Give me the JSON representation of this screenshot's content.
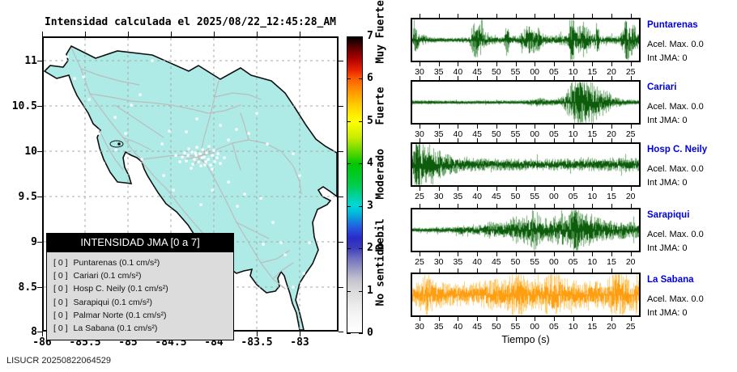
{
  "watermark": "LISUCR 20250822064529",
  "chart_data": {
    "map": {
      "type": "map",
      "title": "Intensidad calculada el 2025/08/22_12:45:28_AM",
      "x_ticks": [
        "-86",
        "-85.5",
        "-85",
        "-84.5",
        "-84",
        "-83.5",
        "-83"
      ],
      "y_ticks": [
        "11",
        "10.5",
        "10",
        "9.5",
        "9",
        "8.5",
        "8"
      ],
      "xlim": [
        -86,
        -82.55
      ],
      "ylim": [
        8,
        11.27
      ],
      "land_color": "#aeeae6",
      "road_color": "#bcbcbc",
      "grid": true,
      "station_dots": [
        [
          185,
          143
        ],
        [
          190,
          147
        ],
        [
          195,
          145
        ],
        [
          200,
          149
        ],
        [
          188,
          152
        ],
        [
          193,
          155
        ],
        [
          198,
          140
        ],
        [
          203,
          144
        ],
        [
          180,
          147
        ],
        [
          205,
          152
        ],
        [
          210,
          147
        ],
        [
          186,
          158
        ],
        [
          196,
          160
        ],
        [
          202,
          155
        ],
        [
          208,
          159
        ],
        [
          178,
          154
        ],
        [
          173,
          149
        ],
        [
          212,
          141
        ],
        [
          216,
          150
        ],
        [
          191,
          137
        ],
        [
          181,
          139
        ],
        [
          176,
          144
        ],
        [
          206,
          136
        ],
        [
          213,
          155
        ],
        [
          197,
          150
        ],
        [
          189,
          144
        ],
        [
          201,
          159
        ],
        [
          184,
          163
        ],
        [
          210,
          164
        ],
        [
          217,
          145
        ],
        [
          170,
          155
        ],
        [
          220,
          157
        ],
        [
          225,
          150
        ],
        [
          165,
          147
        ],
        [
          31,
          25
        ],
        [
          40,
          52
        ],
        [
          51,
          50
        ],
        [
          136,
          30
        ],
        [
          121,
          72
        ],
        [
          58,
          78
        ],
        [
          103,
          120
        ],
        [
          178,
          118
        ],
        [
          191,
          102
        ],
        [
          220,
          110
        ],
        [
          240,
          115
        ],
        [
          278,
          133
        ],
        [
          310,
          145
        ],
        [
          318,
          172
        ],
        [
          346,
          190
        ],
        [
          196,
          208
        ],
        [
          241,
          210
        ],
        [
          273,
          257
        ],
        [
          295,
          255
        ],
        [
          295,
          297
        ],
        [
          323,
          293
        ],
        [
          35,
          147
        ],
        [
          76,
          157
        ],
        [
          91,
          140
        ],
        [
          123,
          152
        ],
        [
          148,
          133
        ],
        [
          157,
          117
        ],
        [
          230,
          128
        ],
        [
          255,
          120
        ],
        [
          265,
          95
        ],
        [
          150,
          172
        ],
        [
          162,
          190
        ],
        [
          210,
          190
        ],
        [
          230,
          180
        ],
        [
          250,
          195
        ],
        [
          270,
          200
        ],
        [
          285,
          230
        ],
        [
          300,
          270
        ],
        [
          310,
          310
        ],
        [
          330,
          255
        ],
        [
          90,
          100
        ],
        [
          70,
          120
        ],
        [
          110,
          85
        ],
        [
          55,
          110
        ]
      ],
      "legend": {
        "title": "INTENSIDAD JMA [0 a 7]",
        "entries": [
          {
            "value": "[ 0 ]",
            "label": "Puntarenas (0.1 cm/s²)"
          },
          {
            "value": "[ 0 ]",
            "label": "Cariari (0.1 cm/s²)"
          },
          {
            "value": "[ 0 ]",
            "label": "Hosp C. Neily (0.1 cm/s²)"
          },
          {
            "value": "[ 0 ]",
            "label": "Sarapiqui (0.1 cm/s²)"
          },
          {
            "value": "[ 0 ]",
            "label": "Palmar Norte (0.1 cm/s²)"
          },
          {
            "value": "[ 0 ]",
            "label": "La Sabana (0.1 cm/s²)"
          }
        ]
      }
    },
    "colorbar": {
      "ticks": [
        "0",
        "1",
        "2",
        "3",
        "4",
        "5",
        "6",
        "7"
      ],
      "range": [
        0,
        7
      ],
      "categories": [
        {
          "text": "No sentido",
          "center_value": 0.78
        },
        {
          "text": "Debil",
          "center_value": 2.1
        },
        {
          "text": "Moderado",
          "center_value": 3.3
        },
        {
          "text": "Fuerte",
          "center_value": 5.05
        },
        {
          "text": "Muy Fuerte",
          "center_value": 6.5
        }
      ],
      "gradient_stops": [
        [
          0.0,
          "#ffffff"
        ],
        [
          0.07,
          "#f2f2f2"
        ],
        [
          0.143,
          "#d9d9d9"
        ],
        [
          0.18,
          "#c2c2cf"
        ],
        [
          0.22,
          "#9494c4"
        ],
        [
          0.255,
          "#6a6ac0"
        ],
        [
          0.286,
          "#3c3cba"
        ],
        [
          0.32,
          "#2a2aca"
        ],
        [
          0.36,
          "#2262e2"
        ],
        [
          0.4,
          "#00b2da"
        ],
        [
          0.429,
          "#00d8d8"
        ],
        [
          0.46,
          "#00d2a2"
        ],
        [
          0.5,
          "#00cc4a"
        ],
        [
          0.571,
          "#00c800"
        ],
        [
          0.61,
          "#5ad800"
        ],
        [
          0.66,
          "#c8ec00"
        ],
        [
          0.714,
          "#ffff00"
        ],
        [
          0.76,
          "#ffd800"
        ],
        [
          0.8,
          "#ffaa00"
        ],
        [
          0.857,
          "#ff6000"
        ],
        [
          0.89,
          "#e82000"
        ],
        [
          0.93,
          "#a80000"
        ],
        [
          0.97,
          "#500000"
        ],
        [
          1.0,
          "#000000"
        ]
      ]
    },
    "seismograms": {
      "type": "line",
      "xlabel": "Tiempo (s)",
      "panels": [
        {
          "station": "Puntarenas",
          "acel": "Acel. Max. 0.0",
          "jma": "Int JMA: 0",
          "ticks": [
            "30",
            "35",
            "40",
            "45",
            "50",
            "55",
            "00",
            "05",
            "10",
            "15",
            "20",
            "25"
          ],
          "color_light": "#74ab74",
          "color_dark": "#0c5c0c",
          "seed": 11,
          "envelope": [
            [
              0,
              0.06
            ],
            [
              0.008,
              0.6
            ],
            [
              0.02,
              0.35
            ],
            [
              0.03,
              0.1
            ],
            [
              0.05,
              0.14
            ],
            [
              0.07,
              0.07
            ],
            [
              0.15,
              0.05
            ],
            [
              0.25,
              0.07
            ],
            [
              0.265,
              0.42
            ],
            [
              0.285,
              0.48
            ],
            [
              0.305,
              0.38
            ],
            [
              0.33,
              0.12
            ],
            [
              0.4,
              0.08
            ],
            [
              0.418,
              0.5
            ],
            [
              0.43,
              0.12
            ],
            [
              0.47,
              0.1
            ],
            [
              0.5,
              0.38
            ],
            [
              0.52,
              0.45
            ],
            [
              0.545,
              0.4
            ],
            [
              0.57,
              0.18
            ],
            [
              0.6,
              0.12
            ],
            [
              0.64,
              0.12
            ],
            [
              0.685,
              0.15
            ],
            [
              0.7,
              1.0
            ],
            [
              0.715,
              0.45
            ],
            [
              0.735,
              0.35
            ],
            [
              0.755,
              0.5
            ],
            [
              0.775,
              0.3
            ],
            [
              0.8,
              0.12
            ],
            [
              0.812,
              0.78
            ],
            [
              0.825,
              0.12
            ],
            [
              0.85,
              0.1
            ],
            [
              0.88,
              0.1
            ],
            [
              0.915,
              0.12
            ],
            [
              0.94,
              0.55
            ],
            [
              0.965,
              0.6
            ],
            [
              0.985,
              0.3
            ],
            [
              1,
              0.18
            ]
          ]
        },
        {
          "station": "Cariari",
          "acel": "Acel. Max. 0.0",
          "jma": "Int JMA: 0",
          "ticks": [
            "30",
            "35",
            "40",
            "45",
            "50",
            "55",
            "00",
            "05",
            "10",
            "15",
            "20",
            "25"
          ],
          "color_light": "#74ab74",
          "color_dark": "#0c5c0c",
          "seed": 22,
          "envelope": [
            [
              0,
              0.05
            ],
            [
              0.1,
              0.04
            ],
            [
              0.3,
              0.04
            ],
            [
              0.45,
              0.04
            ],
            [
              0.5,
              0.05
            ],
            [
              0.53,
              0.1
            ],
            [
              0.56,
              0.12
            ],
            [
              0.6,
              0.07
            ],
            [
              0.63,
              0.08
            ],
            [
              0.66,
              0.12
            ],
            [
              0.68,
              0.3
            ],
            [
              0.7,
              0.55
            ],
            [
              0.72,
              0.75
            ],
            [
              0.74,
              1.0
            ],
            [
              0.76,
              0.85
            ],
            [
              0.78,
              0.65
            ],
            [
              0.8,
              0.55
            ],
            [
              0.82,
              0.45
            ],
            [
              0.84,
              0.35
            ],
            [
              0.86,
              0.3
            ],
            [
              0.88,
              0.2
            ],
            [
              0.9,
              0.12
            ],
            [
              0.93,
              0.08
            ],
            [
              1,
              0.05
            ]
          ]
        },
        {
          "station": "Hosp C. Neily",
          "acel": "Acel. Max. 0.0",
          "jma": "Int JMA: 0",
          "ticks": [
            "25",
            "30",
            "35",
            "40",
            "45",
            "50",
            "55",
            "00",
            "05",
            "10",
            "15",
            "20"
          ],
          "color_light": "#74ab74",
          "color_dark": "#0c5c0c",
          "seed": 33,
          "envelope": [
            [
              0,
              0.25
            ],
            [
              0.01,
              1.0
            ],
            [
              0.03,
              0.85
            ],
            [
              0.05,
              0.55
            ],
            [
              0.07,
              0.45
            ],
            [
              0.09,
              0.55
            ],
            [
              0.11,
              0.4
            ],
            [
              0.14,
              0.3
            ],
            [
              0.18,
              0.25
            ],
            [
              0.22,
              0.2
            ],
            [
              0.28,
              0.17
            ],
            [
              0.35,
              0.16
            ],
            [
              0.45,
              0.15
            ],
            [
              0.55,
              0.16
            ],
            [
              0.65,
              0.15
            ],
            [
              0.75,
              0.16
            ],
            [
              0.85,
              0.17
            ],
            [
              0.95,
              0.18
            ],
            [
              1,
              0.18
            ]
          ]
        },
        {
          "station": "Sarapiqui",
          "acel": "Acel. Max. 0.0",
          "jma": "Int JMA: 0",
          "ticks": [
            "25",
            "30",
            "35",
            "40",
            "45",
            "50",
            "55",
            "00",
            "05",
            "10",
            "15",
            "20"
          ],
          "color_light": "#74ab74",
          "color_dark": "#0c5c0c",
          "seed": 44,
          "envelope": [
            [
              0,
              0.05
            ],
            [
              0.1,
              0.06
            ],
            [
              0.18,
              0.08
            ],
            [
              0.22,
              0.12
            ],
            [
              0.26,
              0.1
            ],
            [
              0.3,
              0.14
            ],
            [
              0.34,
              0.22
            ],
            [
              0.38,
              0.18
            ],
            [
              0.42,
              0.25
            ],
            [
              0.45,
              0.4
            ],
            [
              0.48,
              0.3
            ],
            [
              0.51,
              0.5
            ],
            [
              0.54,
              0.55
            ],
            [
              0.57,
              0.35
            ],
            [
              0.6,
              0.3
            ],
            [
              0.63,
              0.38
            ],
            [
              0.66,
              0.45
            ],
            [
              0.69,
              0.4
            ],
            [
              0.72,
              1.0
            ],
            [
              0.74,
              0.55
            ],
            [
              0.76,
              0.45
            ],
            [
              0.78,
              0.5
            ],
            [
              0.8,
              0.4
            ],
            [
              0.83,
              0.3
            ],
            [
              0.86,
              0.25
            ],
            [
              0.9,
              0.28
            ],
            [
              0.94,
              0.22
            ],
            [
              1,
              0.2
            ]
          ]
        },
        {
          "station": "La Sabana",
          "acel": "Acel. Max. 0.0",
          "jma": "Int JMA: 0",
          "ticks": [
            "30",
            "35",
            "40",
            "45",
            "50",
            "55",
            "00",
            "05",
            "10",
            "15",
            "20",
            "25"
          ],
          "color_light": "#ffcb70",
          "color_dark": "#ff9e10",
          "seed": 55,
          "envelope": [
            [
              0,
              0.3
            ],
            [
              0.04,
              0.35
            ],
            [
              0.07,
              0.9
            ],
            [
              0.09,
              0.45
            ],
            [
              0.12,
              0.35
            ],
            [
              0.16,
              0.3
            ],
            [
              0.2,
              0.32
            ],
            [
              0.24,
              0.28
            ],
            [
              0.28,
              0.35
            ],
            [
              0.32,
              0.4
            ],
            [
              0.36,
              0.45
            ],
            [
              0.4,
              0.38
            ],
            [
              0.44,
              0.55
            ],
            [
              0.47,
              0.65
            ],
            [
              0.5,
              0.45
            ],
            [
              0.53,
              0.4
            ],
            [
              0.56,
              0.45
            ],
            [
              0.6,
              0.55
            ],
            [
              0.63,
              0.75
            ],
            [
              0.66,
              0.45
            ],
            [
              0.7,
              0.4
            ],
            [
              0.74,
              0.35
            ],
            [
              0.78,
              0.4
            ],
            [
              0.82,
              0.35
            ],
            [
              0.86,
              0.4
            ],
            [
              0.9,
              0.8
            ],
            [
              0.93,
              0.6
            ],
            [
              0.96,
              0.45
            ],
            [
              1,
              0.4
            ]
          ]
        }
      ]
    }
  }
}
